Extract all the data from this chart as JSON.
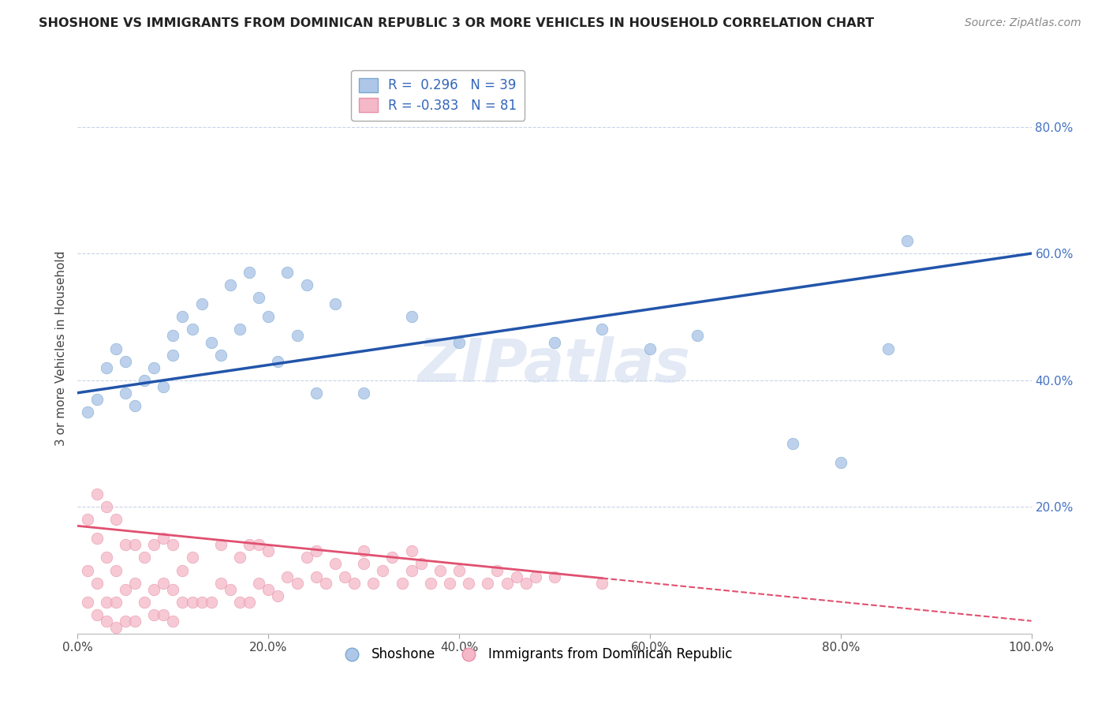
{
  "title": "SHOSHONE VS IMMIGRANTS FROM DOMINICAN REPUBLIC 3 OR MORE VEHICLES IN HOUSEHOLD CORRELATION CHART",
  "source": "Source: ZipAtlas.com",
  "ylabel": "3 or more Vehicles in Household",
  "xlim": [
    0,
    100
  ],
  "ylim": [
    0,
    90
  ],
  "yticks": [
    0,
    20,
    40,
    60,
    80
  ],
  "ytick_labels": [
    "",
    "20.0%",
    "40.0%",
    "60.0%",
    "80.0%"
  ],
  "xticks": [
    0,
    20,
    40,
    60,
    80,
    100
  ],
  "xtick_labels": [
    "0.0%",
    "20.0%",
    "40.0%",
    "60.0%",
    "80.0%",
    "100.0%"
  ],
  "shoshone_color": "#aec6e8",
  "shoshone_edge": "#7aaad0",
  "dominican_color": "#f4b8c8",
  "dominican_edge": "#e890a8",
  "trend_blue": "#2255aa",
  "trend_pink": "#e05070",
  "watermark": "ZIPatlas",
  "shoshone_R": 0.296,
  "shoshone_N": 39,
  "dominican_R": -0.383,
  "dominican_N": 81,
  "shoshone_scatter": {
    "x": [
      1,
      2,
      3,
      4,
      5,
      5,
      6,
      7,
      8,
      9,
      10,
      10,
      11,
      12,
      13,
      14,
      15,
      16,
      17,
      18,
      19,
      20,
      21,
      22,
      23,
      24,
      25,
      27,
      30,
      35,
      40,
      50,
      55,
      60,
      65,
      75,
      80,
      85,
      87
    ],
    "y": [
      35,
      37,
      42,
      45,
      38,
      43,
      36,
      40,
      42,
      39,
      44,
      47,
      50,
      48,
      52,
      46,
      44,
      55,
      48,
      57,
      53,
      50,
      43,
      57,
      47,
      55,
      38,
      52,
      38,
      50,
      46,
      46,
      48,
      45,
      47,
      30,
      27,
      45,
      62
    ]
  },
  "dominican_scatter": {
    "x": [
      1,
      1,
      1,
      2,
      2,
      2,
      2,
      3,
      3,
      3,
      3,
      4,
      4,
      4,
      4,
      5,
      5,
      5,
      6,
      6,
      6,
      7,
      7,
      8,
      8,
      8,
      9,
      9,
      9,
      10,
      10,
      10,
      11,
      11,
      12,
      12,
      13,
      14,
      15,
      15,
      16,
      17,
      17,
      18,
      18,
      19,
      19,
      20,
      20,
      21,
      22,
      23,
      24,
      25,
      25,
      26,
      27,
      28,
      29,
      30,
      30,
      31,
      32,
      33,
      34,
      35,
      35,
      36,
      37,
      38,
      39,
      40,
      41,
      43,
      44,
      45,
      46,
      47,
      48,
      50,
      55
    ],
    "y": [
      5,
      10,
      18,
      3,
      8,
      15,
      22,
      2,
      5,
      12,
      20,
      1,
      5,
      10,
      18,
      2,
      7,
      14,
      2,
      8,
      14,
      5,
      12,
      3,
      7,
      14,
      3,
      8,
      15,
      2,
      7,
      14,
      5,
      10,
      5,
      12,
      5,
      5,
      8,
      14,
      7,
      5,
      12,
      5,
      14,
      8,
      14,
      7,
      13,
      6,
      9,
      8,
      12,
      9,
      13,
      8,
      11,
      9,
      8,
      11,
      13,
      8,
      10,
      12,
      8,
      13,
      10,
      11,
      8,
      10,
      8,
      10,
      8,
      8,
      10,
      8,
      9,
      8,
      9,
      9,
      8
    ]
  },
  "blue_trend_x0": 0,
  "blue_trend_y0": 38.0,
  "blue_trend_x1": 100,
  "blue_trend_y1": 60.0,
  "pink_trend_x0": 0,
  "pink_trend_y0": 17.0,
  "pink_trend_x1": 100,
  "pink_trend_y1": 2.0,
  "pink_solid_end": 55
}
